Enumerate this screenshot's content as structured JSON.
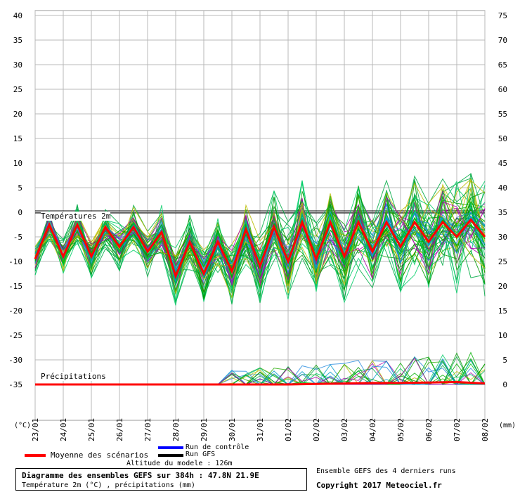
{
  "chart_data": {
    "type": "line",
    "title": "Diagramme des ensembles GEFS sur 384h : 47.8N 21.9E",
    "subtitle": "Température 2m (°C) , précipitations (mm)",
    "altitude_label": "Altitude du modele : 126m",
    "ensemble_note": "Ensemble GEFS des 4 derniers runs",
    "copyright": "Copyright 2017 Meteociel.fr",
    "left_axis_unit": "(°C)",
    "right_axis_unit": "(mm)",
    "temp_section_label": "Températures 2m",
    "precip_section_label": "Précipitations",
    "left_ticks": [
      40,
      35,
      30,
      25,
      20,
      15,
      10,
      5,
      0,
      -5,
      -10,
      -15,
      -20,
      -25,
      -30,
      -35
    ],
    "right_ticks": [
      75,
      70,
      65,
      60,
      55,
      50,
      45,
      40,
      35,
      30,
      25,
      20,
      15,
      10,
      5,
      0
    ],
    "ylim": [
      -43,
      43
    ],
    "x_labels": [
      "23/01",
      "24/01",
      "25/01",
      "26/01",
      "27/01",
      "28/01",
      "29/01",
      "30/01",
      "31/01",
      "01/02",
      "02/02",
      "03/02",
      "04/02",
      "05/02",
      "06/02",
      "07/02",
      "08/02"
    ],
    "grid": true,
    "legend": [
      {
        "label": "Moyenne des scénarios",
        "color": "#ff0000"
      },
      {
        "label": "Run de contrôle",
        "color": "#0000ff"
      },
      {
        "label": "Run GFS",
        "color": "#000000"
      }
    ],
    "series": [
      {
        "name": "Moyenne des scénarios",
        "color": "#ff0000",
        "x": [
          0,
          0.5,
          1,
          1.5,
          2,
          2.5,
          3,
          3.5,
          4,
          4.5,
          5,
          5.5,
          6,
          6.5,
          7,
          7.5,
          8,
          8.5,
          9,
          9.5,
          10,
          10.5,
          11,
          11.5,
          12,
          12.5,
          13,
          13.5,
          14,
          14.5,
          15,
          15.5,
          16
        ],
        "values": [
          -9.5,
          -2.5,
          -9,
          -2.5,
          -9,
          -3,
          -7,
          -3,
          -8,
          -4,
          -13,
          -6,
          -12.5,
          -6,
          -12,
          -3.5,
          -11,
          -3,
          -10,
          -2,
          -9.5,
          -2,
          -9,
          -2,
          -8,
          -2,
          -7,
          -2,
          -6,
          -2,
          -5,
          -1.5,
          -5
        ]
      },
      {
        "name": "Précipitations moyenne",
        "color": "#ff0000",
        "x": [
          0,
          1,
          2,
          3,
          4,
          5,
          6,
          7,
          8,
          9,
          10,
          11,
          12,
          13,
          14,
          15,
          16
        ],
        "values": [
          0,
          0,
          0,
          0,
          0,
          0,
          0,
          0,
          0,
          0,
          0.1,
          0.2,
          0.3,
          0.3,
          0.4,
          0.5,
          0.2
        ]
      }
    ]
  }
}
